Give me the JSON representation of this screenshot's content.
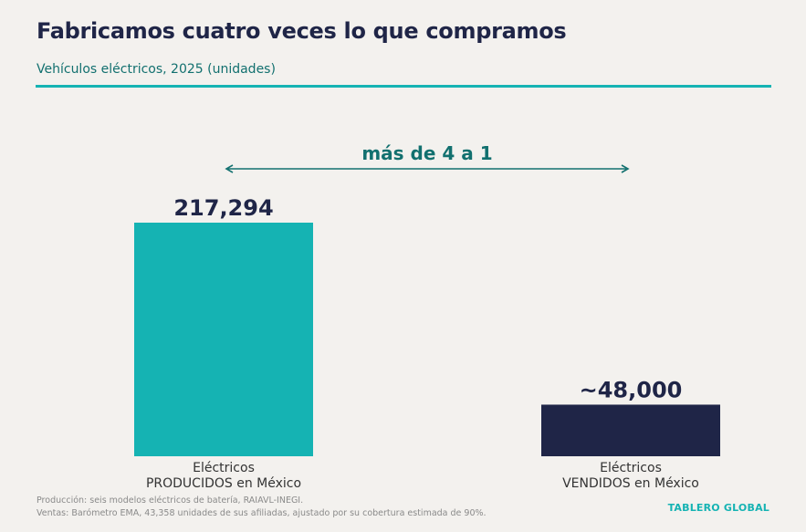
{
  "header": {
    "title": "Fabricamos cuatro veces lo que compramos",
    "subtitle": "Vehículos eléctricos, 2025 (unidades)"
  },
  "annotation": {
    "ratio_label": "más de 4 a 1"
  },
  "chart_data": {
    "type": "bar",
    "title": "Fabricamos cuatro veces lo que compramos",
    "subtitle": "Vehículos eléctricos, 2025 (unidades)",
    "xlabel": "",
    "ylabel": "",
    "ylim": [
      0,
      217294
    ],
    "grid": false,
    "categories": [
      [
        "Eléctricos",
        "PRODUCIDOS en México"
      ],
      [
        "Eléctricos",
        "VENDIDOS en México"
      ]
    ],
    "values": [
      217294,
      48000
    ],
    "data_labels": [
      "217,294",
      "~48,000"
    ],
    "colors": [
      "#15b3b3",
      "#1f2547"
    ],
    "annotations": [
      "más de 4 a 1"
    ]
  },
  "footer": {
    "source_line1": "Producción: seis modelos eléctricos de batería, RAIAVL-INEGI.",
    "source_line2": "Ventas: Barómetro EMA, 43,358 unidades de sus afiliadas, ajustado por su cobertura estimada de 90%.",
    "brand": "TABLERO GLOBAL"
  }
}
